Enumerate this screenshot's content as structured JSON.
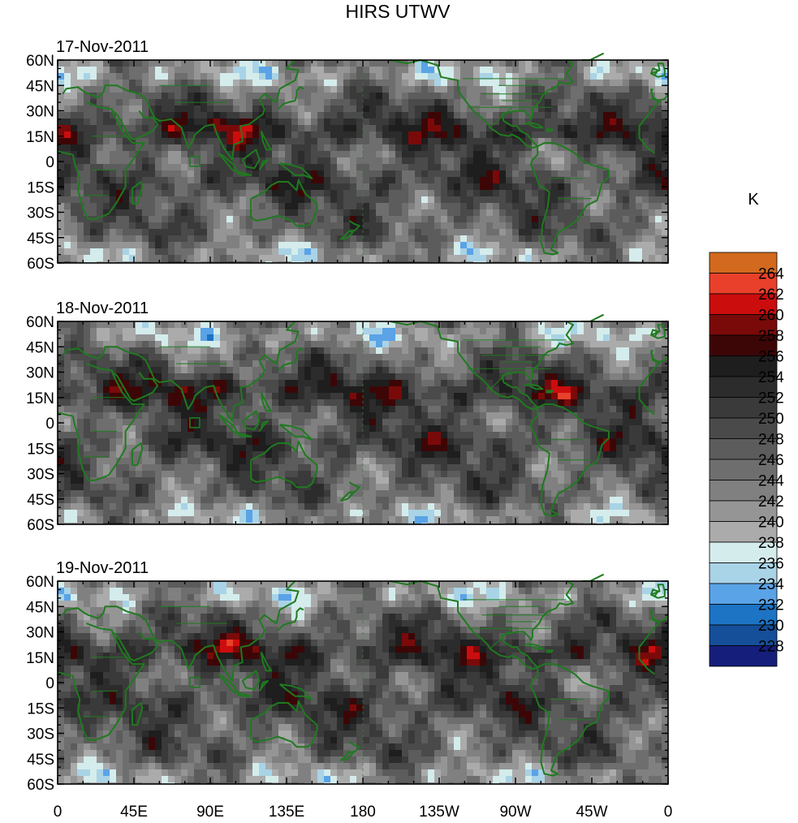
{
  "title": "HIRS UTWV",
  "panels": [
    {
      "date": "17-Nov-2011",
      "seed": 11
    },
    {
      "date": "18-Nov-2011",
      "seed": 23
    },
    {
      "date": "19-Nov-2011",
      "seed": 37
    }
  ],
  "lat_labels": [
    "60N",
    "45N",
    "30N",
    "15N",
    "0",
    "15S",
    "30S",
    "45S",
    "60S"
  ],
  "lon_labels": [
    "0",
    "45E",
    "90E",
    "135E",
    "180",
    "135W",
    "90W",
    "45W",
    "0"
  ],
  "colorbar": {
    "unit": "K",
    "labels": [
      "264",
      "262",
      "260",
      "258",
      "256",
      "254",
      "252",
      "250",
      "248",
      "246",
      "244",
      "242",
      "240",
      "238",
      "236",
      "234",
      "232",
      "230",
      "228"
    ],
    "colors": [
      "#d2691e",
      "#e8402a",
      "#cc0d0d",
      "#7a0a0a",
      "#3d0606",
      "#1e1e1e",
      "#2c2c2c",
      "#3a3a3a",
      "#4a4a4a",
      "#5c5c5c",
      "#6e6e6e",
      "#808080",
      "#959595",
      "#ababab",
      "#d4ecec",
      "#a9d3e6",
      "#5aa3e6",
      "#1d74c4",
      "#154f99",
      "#151e7a"
    ]
  },
  "colors": {
    "coastline": "#1f7a1f",
    "frame": "#000000"
  }
}
